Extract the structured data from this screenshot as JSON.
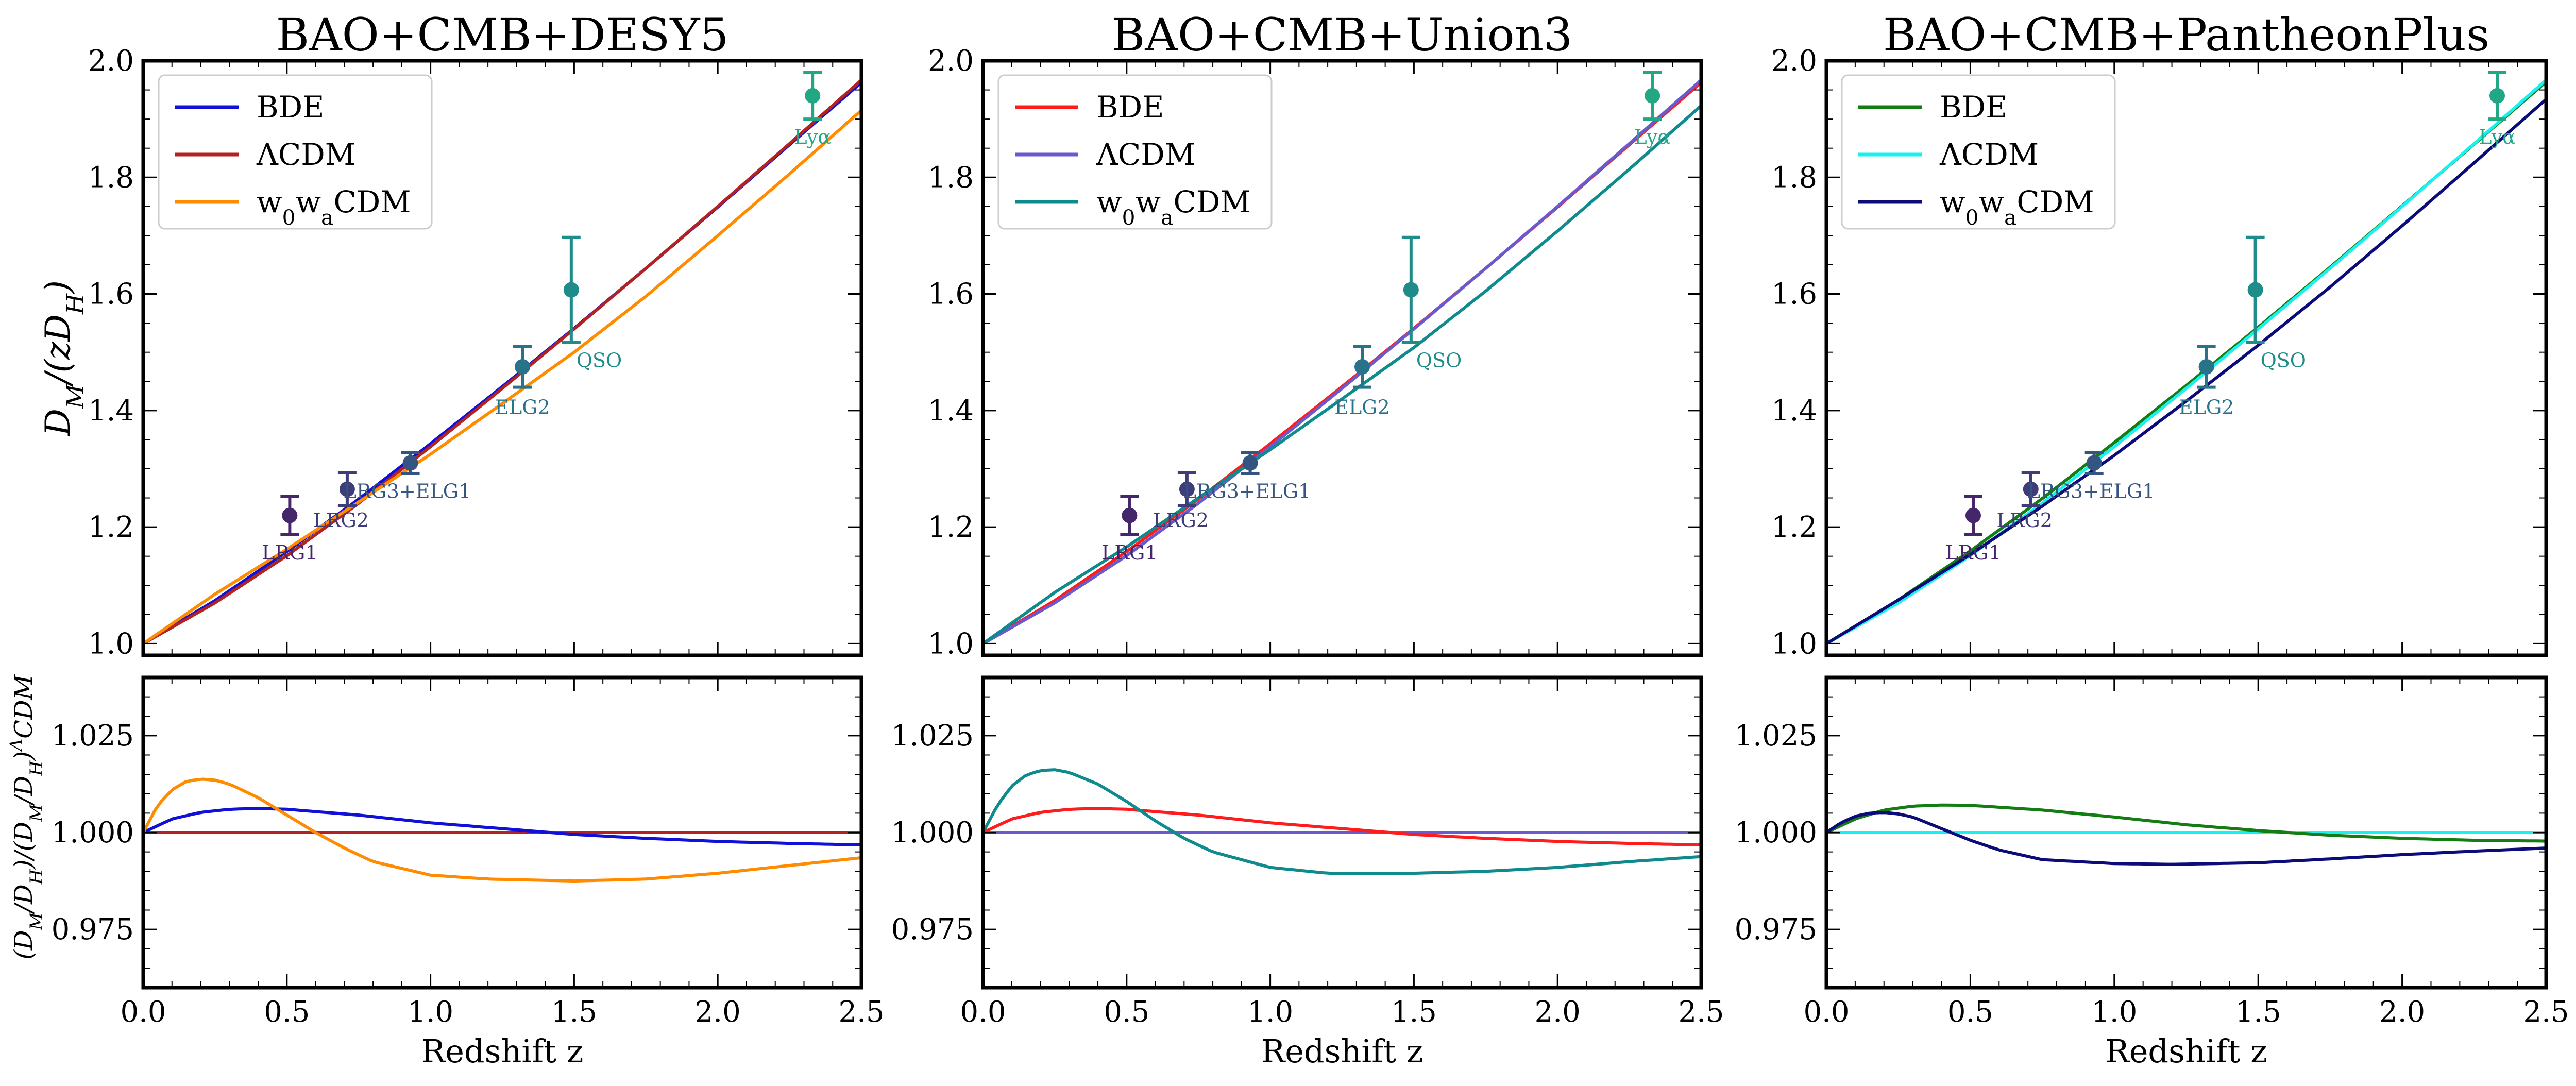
{
  "figure": {
    "shared_xlabel": "Redshift z",
    "shared_ylabel_top": "D_M/(zD_H)",
    "shared_ylabel_bottom": "(D_M/D_H)/(D_M/D_H)^ΛCDM"
  },
  "chart_data": [
    {
      "type": "line",
      "title": "BAO+CMB+DESY5",
      "xlabel": "Redshift z",
      "ylabel_top": "D_M/(zD_H)",
      "ylabel_bottom": "(D_M/D_H)/(D_M/D_H)^ΛCDM",
      "xlim": [
        0.0,
        2.5
      ],
      "ylim_top": [
        0.98,
        2.0
      ],
      "ylim_bottom": [
        0.96,
        1.04
      ],
      "x_ticks": [
        "0.0",
        "0.5",
        "1.0",
        "1.5",
        "2.0",
        "2.5"
      ],
      "y_ticks_top": [
        "1.0",
        "1.2",
        "1.4",
        "1.6",
        "1.8",
        "2.0"
      ],
      "y_ticks_bottom": [
        "0.975",
        "1.000",
        "1.025"
      ],
      "legend_position": "top-left",
      "series": [
        {
          "name": "BDE",
          "color": "#1010d8",
          "dm_dh": {
            "z": [
              0.0,
              0.25,
              0.5,
              0.75,
              1.0,
              1.25,
              1.5,
              1.75,
              2.0,
              2.25,
              2.5
            ],
            "values": [
              1.0,
              1.074,
              1.158,
              1.248,
              1.343,
              1.441,
              1.541,
              1.644,
              1.749,
              1.856,
              1.963
            ]
          },
          "ratio": {
            "z": [
              0.0,
              0.1,
              0.2,
              0.3,
              0.4,
              0.5,
              0.75,
              1.0,
              1.25,
              1.5,
              1.75,
              2.0,
              2.25,
              2.5
            ],
            "values": [
              1.0,
              1.0035,
              1.0052,
              1.006,
              1.0062,
              1.006,
              1.0045,
              1.0025,
              1.001,
              0.9995,
              0.9985,
              0.9977,
              0.9972,
              0.9968
            ]
          }
        },
        {
          "name": "ΛCDM",
          "color": "#b22222",
          "dm_dh": {
            "z": [
              0.0,
              0.25,
              0.5,
              0.75,
              1.0,
              1.25,
              1.5,
              1.75,
              2.0,
              2.25,
              2.5
            ],
            "values": [
              1.0,
              1.07,
              1.151,
              1.241,
              1.338,
              1.438,
              1.54,
              1.644,
              1.75,
              1.858,
              1.967
            ]
          },
          "ratio": {
            "z": [
              0.0,
              2.5
            ],
            "values": [
              1.0,
              1.0
            ]
          }
        },
        {
          "name": "w0waCDM",
          "color": "#ff8c00",
          "dm_dh": {
            "z": [
              0.0,
              0.25,
              0.5,
              0.75,
              1.0,
              1.25,
              1.5,
              1.75,
              2.0,
              2.25,
              2.5
            ],
            "values": [
              1.0,
              1.085,
              1.162,
              1.243,
              1.325,
              1.412,
              1.5,
              1.596,
              1.7,
              1.806,
              1.915
            ]
          },
          "ratio": {
            "z": [
              0.0,
              0.05,
              0.1,
              0.15,
              0.2,
              0.25,
              0.3,
              0.4,
              0.5,
              0.6,
              0.7,
              0.8,
              1.0,
              1.2,
              1.5,
              1.75,
              2.0,
              2.25,
              2.5
            ],
            "values": [
              1.0,
              1.007,
              1.011,
              1.0132,
              1.0138,
              1.0135,
              1.0125,
              1.009,
              1.0045,
              1.0,
              0.996,
              0.9925,
              0.989,
              0.988,
              0.9875,
              0.988,
              0.9895,
              0.9915,
              0.9935
            ]
          }
        }
      ],
      "data_points": [
        {
          "label": "LRG1",
          "z": 0.51,
          "value": 1.22,
          "err": 0.033,
          "color": "#45266b"
        },
        {
          "label": "LRG2",
          "z": 0.71,
          "value": 1.265,
          "err": 0.028,
          "color": "#3e3d7a"
        },
        {
          "label": "LRG3+ELG1",
          "z": 0.93,
          "value": 1.31,
          "err": 0.018,
          "color": "#345481"
        },
        {
          "label": "ELG2",
          "z": 1.32,
          "value": 1.475,
          "err": 0.035,
          "color": "#29738a"
        },
        {
          "label": "QSO",
          "z": 1.49,
          "value": 1.607,
          "err": 0.09,
          "color": "#1e8c89"
        },
        {
          "label": "Lyα",
          "z": 2.33,
          "value": 1.94,
          "err": 0.04,
          "color": "#22a785"
        }
      ]
    },
    {
      "type": "line",
      "title": "BAO+CMB+Union3",
      "xlabel": "Redshift z",
      "xlim": [
        0.0,
        2.5
      ],
      "ylim_top": [
        0.98,
        2.0
      ],
      "ylim_bottom": [
        0.96,
        1.04
      ],
      "x_ticks": [
        "0.0",
        "0.5",
        "1.0",
        "1.5",
        "2.0",
        "2.5"
      ],
      "y_ticks_top": [
        "1.0",
        "1.2",
        "1.4",
        "1.6",
        "1.8",
        "2.0"
      ],
      "y_ticks_bottom": [
        "0.975",
        "1.000",
        "1.025"
      ],
      "legend_position": "top-left",
      "series": [
        {
          "name": "BDE",
          "color": "#ff1c1c",
          "dm_dh": {
            "z": [
              0.0,
              0.25,
              0.5,
              0.75,
              1.0,
              1.25,
              1.5,
              1.75,
              2.0,
              2.25,
              2.5
            ],
            "values": [
              1.0,
              1.074,
              1.158,
              1.248,
              1.343,
              1.441,
              1.541,
              1.644,
              1.749,
              1.856,
              1.963
            ]
          },
          "ratio": {
            "z": [
              0.0,
              0.1,
              0.2,
              0.3,
              0.4,
              0.5,
              0.75,
              1.0,
              1.25,
              1.5,
              1.75,
              2.0,
              2.25,
              2.5
            ],
            "values": [
              1.0,
              1.0035,
              1.0052,
              1.006,
              1.0062,
              1.006,
              1.0045,
              1.0025,
              1.001,
              0.9995,
              0.9985,
              0.9977,
              0.9972,
              0.9968
            ]
          }
        },
        {
          "name": "ΛCDM",
          "color": "#6a5acd",
          "dm_dh": {
            "z": [
              0.0,
              0.25,
              0.5,
              0.75,
              1.0,
              1.25,
              1.5,
              1.75,
              2.0,
              2.25,
              2.5
            ],
            "values": [
              1.0,
              1.07,
              1.151,
              1.241,
              1.338,
              1.438,
              1.54,
              1.644,
              1.75,
              1.858,
              1.967
            ]
          },
          "ratio": {
            "z": [
              0.0,
              2.5
            ],
            "values": [
              1.0,
              1.0
            ]
          }
        },
        {
          "name": "w0waCDM",
          "color": "#0f8b8d",
          "dm_dh": {
            "z": [
              0.0,
              0.25,
              0.5,
              0.75,
              1.0,
              1.25,
              1.5,
              1.75,
              2.0,
              2.25,
              2.5
            ],
            "values": [
              1.0,
              1.088,
              1.166,
              1.25,
              1.333,
              1.42,
              1.508,
              1.605,
              1.708,
              1.814,
              1.923
            ]
          },
          "ratio": {
            "z": [
              0.0,
              0.05,
              0.1,
              0.15,
              0.2,
              0.25,
              0.3,
              0.4,
              0.5,
              0.6,
              0.7,
              0.8,
              1.0,
              1.2,
              1.5,
              1.75,
              2.0,
              2.25,
              2.5
            ],
            "values": [
              1.0,
              1.007,
              1.012,
              1.0148,
              1.016,
              1.0162,
              1.0155,
              1.0125,
              1.008,
              1.003,
              0.9985,
              0.995,
              0.991,
              0.9895,
              0.9895,
              0.99,
              0.991,
              0.9925,
              0.9938
            ]
          }
        }
      ],
      "data_points": [
        {
          "label": "LRG1",
          "z": 0.51,
          "value": 1.22,
          "err": 0.033,
          "color": "#45266b"
        },
        {
          "label": "LRG2",
          "z": 0.71,
          "value": 1.265,
          "err": 0.028,
          "color": "#3e3d7a"
        },
        {
          "label": "LRG3+ELG1",
          "z": 0.93,
          "value": 1.31,
          "err": 0.018,
          "color": "#345481"
        },
        {
          "label": "ELG2",
          "z": 1.32,
          "value": 1.475,
          "err": 0.035,
          "color": "#29738a"
        },
        {
          "label": "QSO",
          "z": 1.49,
          "value": 1.607,
          "err": 0.09,
          "color": "#1e8c89"
        },
        {
          "label": "Lyα",
          "z": 2.33,
          "value": 1.94,
          "err": 0.04,
          "color": "#22a785"
        }
      ]
    },
    {
      "type": "line",
      "title": "BAO+CMB+PantheonPlus",
      "xlabel": "Redshift z",
      "xlim": [
        0.0,
        2.5
      ],
      "ylim_top": [
        0.98,
        2.0
      ],
      "ylim_bottom": [
        0.96,
        1.04
      ],
      "x_ticks": [
        "0.0",
        "0.5",
        "1.0",
        "1.5",
        "2.0",
        "2.5"
      ],
      "y_ticks_top": [
        "1.0",
        "1.2",
        "1.4",
        "1.6",
        "1.8",
        "2.0"
      ],
      "y_ticks_bottom": [
        "0.975",
        "1.000",
        "1.025"
      ],
      "legend_position": "top-left",
      "series": [
        {
          "name": "BDE",
          "color": "#137d13",
          "dm_dh": {
            "z": [
              0.0,
              0.25,
              0.5,
              0.75,
              1.0,
              1.25,
              1.5,
              1.75,
              2.0,
              2.25,
              2.5
            ],
            "values": [
              1.0,
              1.075,
              1.159,
              1.249,
              1.345,
              1.443,
              1.543,
              1.646,
              1.751,
              1.857,
              1.964
            ]
          },
          "ratio": {
            "z": [
              0.0,
              0.1,
              0.2,
              0.3,
              0.4,
              0.5,
              0.75,
              1.0,
              1.25,
              1.5,
              1.75,
              2.0,
              2.25,
              2.5
            ],
            "values": [
              1.0,
              1.0035,
              1.0058,
              1.0068,
              1.0071,
              1.007,
              1.0058,
              1.004,
              1.002,
              1.0005,
              0.9993,
              0.9985,
              0.998,
              0.9978
            ]
          }
        },
        {
          "name": "ΛCDM",
          "color": "#19f0f0",
          "dm_dh": {
            "z": [
              0.0,
              0.25,
              0.5,
              0.75,
              1.0,
              1.25,
              1.5,
              1.75,
              2.0,
              2.25,
              2.5
            ],
            "values": [
              1.0,
              1.07,
              1.151,
              1.241,
              1.338,
              1.438,
              1.54,
              1.644,
              1.75,
              1.858,
              1.967
            ]
          },
          "ratio": {
            "z": [
              0.0,
              2.5
            ],
            "values": [
              1.0,
              1.0
            ]
          }
        },
        {
          "name": "w0waCDM",
          "color": "#0b0b7a",
          "dm_dh": {
            "z": [
              0.0,
              0.25,
              0.5,
              0.75,
              1.0,
              1.25,
              1.5,
              1.75,
              2.0,
              2.25,
              2.5
            ],
            "values": [
              1.0,
              1.075,
              1.153,
              1.236,
              1.323,
              1.416,
              1.512,
              1.612,
              1.717,
              1.825,
              1.934
            ]
          },
          "ratio": {
            "z": [
              0.0,
              0.05,
              0.1,
              0.15,
              0.2,
              0.25,
              0.3,
              0.4,
              0.5,
              0.6,
              0.75,
              1.0,
              1.2,
              1.5,
              1.75,
              2.0,
              2.25,
              2.5
            ],
            "values": [
              1.0,
              1.0025,
              1.0042,
              1.005,
              1.0052,
              1.0048,
              1.004,
              1.001,
              0.998,
              0.9955,
              0.993,
              0.992,
              0.9918,
              0.9922,
              0.9932,
              0.9943,
              0.9952,
              0.996
            ]
          }
        }
      ],
      "data_points": [
        {
          "label": "LRG1",
          "z": 0.51,
          "value": 1.22,
          "err": 0.033,
          "color": "#45266b"
        },
        {
          "label": "LRG2",
          "z": 0.71,
          "value": 1.265,
          "err": 0.028,
          "color": "#3e3d7a"
        },
        {
          "label": "LRG3+ELG1",
          "z": 0.93,
          "value": 1.31,
          "err": 0.018,
          "color": "#345481"
        },
        {
          "label": "ELG2",
          "z": 1.32,
          "value": 1.475,
          "err": 0.035,
          "color": "#29738a"
        },
        {
          "label": "QSO",
          "z": 1.49,
          "value": 1.607,
          "err": 0.09,
          "color": "#1e8c89"
        },
        {
          "label": "Lyα",
          "z": 2.33,
          "value": 1.94,
          "err": 0.04,
          "color": "#22a785"
        }
      ]
    }
  ]
}
